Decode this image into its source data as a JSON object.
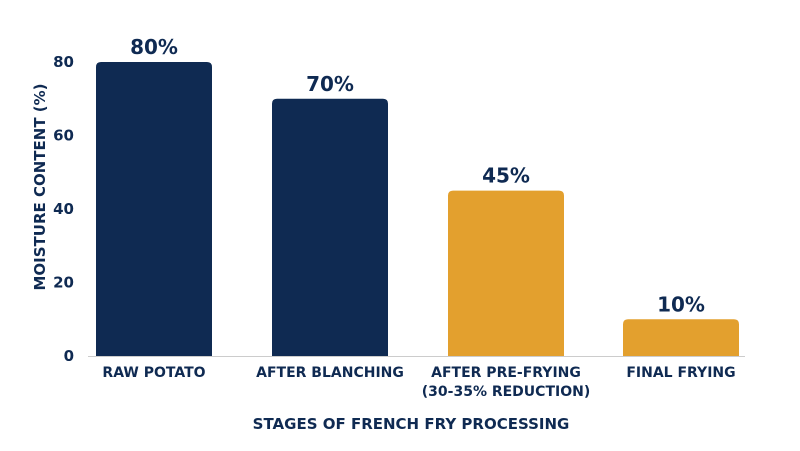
{
  "chart_data": {
    "type": "bar",
    "categories": [
      [
        "RAW POTATO"
      ],
      [
        "AFTER BLANCHING"
      ],
      [
        "AFTER PRE-FRYING",
        "(30-35% REDUCTION)"
      ],
      [
        "FINAL FRYING"
      ]
    ],
    "values": [
      80,
      70,
      45,
      10
    ],
    "data_labels": [
      "80%",
      "70%",
      "45%",
      "10%"
    ],
    "bar_colors": [
      "#0f2a52",
      "#0f2a52",
      "#e3a02e",
      "#e3a02e"
    ],
    "xlabel": "STAGES OF FRENCH FRY PROCESSING",
    "ylabel": "MOISTURE CONTENT (%)",
    "ylim": [
      0,
      80
    ],
    "yticks": [
      0,
      20,
      40,
      60,
      80
    ],
    "grid": false,
    "colors": {
      "text": "#0f2a52",
      "axis": "#cccccc"
    }
  }
}
